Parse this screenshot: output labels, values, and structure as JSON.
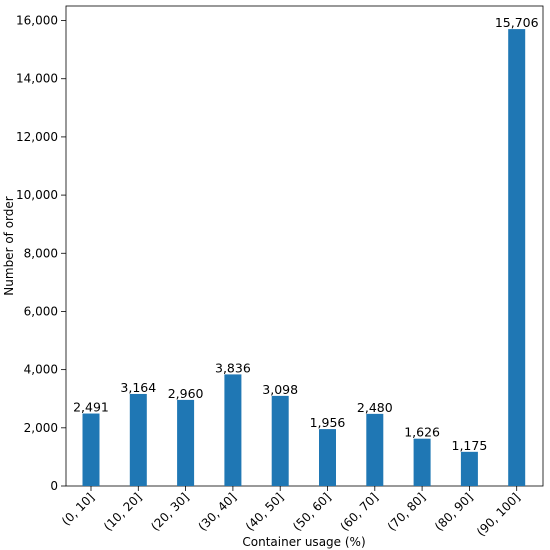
{
  "chart_data": {
    "type": "bar",
    "title": "",
    "xlabel": "Container usage (%)",
    "ylabel": "Number of order",
    "categories": [
      "(0, 10]",
      "(10, 20]",
      "(20, 30]",
      "(30, 40]",
      "(40, 50]",
      "(50, 60]",
      "(60, 70]",
      "(70, 80]",
      "(80, 90]",
      "(90, 100]"
    ],
    "values": [
      2491,
      3164,
      2960,
      3836,
      3098,
      1956,
      2480,
      1626,
      1175,
      15706
    ],
    "value_labels": [
      "2,491",
      "3,164",
      "2,960",
      "3,836",
      "3,098",
      "1,956",
      "2,480",
      "1,626",
      "1,175",
      "15,706"
    ],
    "ylim": [
      0,
      16500
    ],
    "yticks": [
      0,
      2000,
      4000,
      6000,
      8000,
      10000,
      12000,
      14000,
      16000
    ],
    "ytick_labels": [
      "0",
      "2,000",
      "4,000",
      "6,000",
      "8,000",
      "10,000",
      "12,000",
      "14,000",
      "16,000"
    ],
    "grid": false,
    "legend": "none",
    "bar_color": "#1f77b4"
  }
}
